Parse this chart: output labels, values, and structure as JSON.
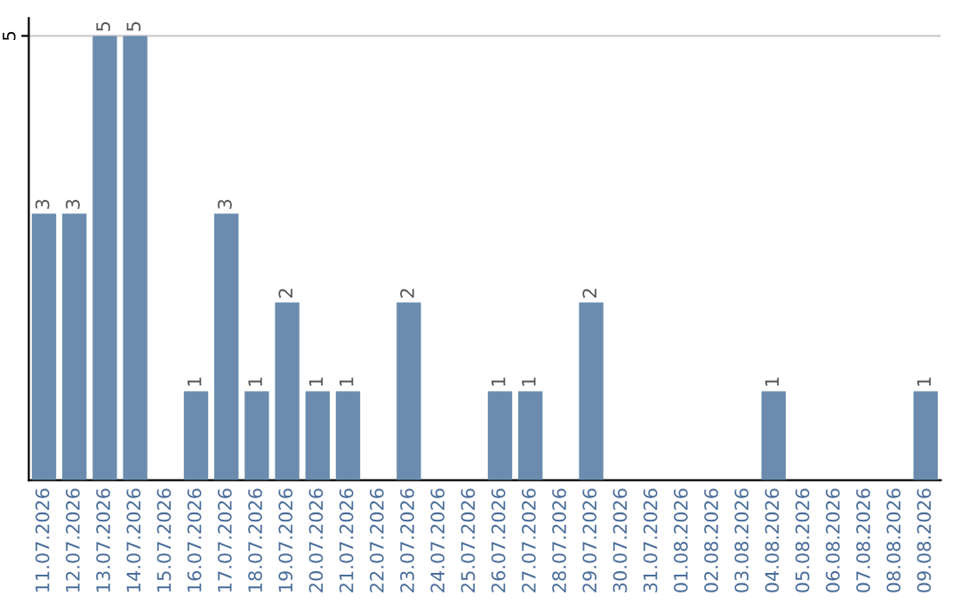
{
  "chart_data": {
    "type": "bar",
    "categories": [
      "11.07.2026",
      "12.07.2026",
      "13.07.2026",
      "14.07.2026",
      "15.07.2026",
      "16.07.2026",
      "17.07.2026",
      "18.07.2026",
      "19.07.2026",
      "20.07.2026",
      "21.07.2026",
      "22.07.2026",
      "23.07.2026",
      "24.07.2026",
      "25.07.2026",
      "26.07.2026",
      "27.07.2026",
      "28.07.2026",
      "29.07.2026",
      "30.07.2026",
      "31.07.2026",
      "01.08.2026",
      "02.08.2026",
      "03.08.2026",
      "04.08.2026",
      "05.08.2026",
      "06.08.2026",
      "07.08.2026",
      "08.08.2026",
      "09.08.2026"
    ],
    "values": [
      3,
      3,
      5,
      5,
      0,
      1,
      3,
      1,
      2,
      1,
      1,
      0,
      2,
      0,
      0,
      1,
      1,
      0,
      2,
      0,
      0,
      0,
      0,
      0,
      1,
      0,
      0,
      0,
      0,
      1
    ],
    "value_labels": [
      "3",
      "3",
      "5",
      "5",
      null,
      "1",
      "3",
      "1",
      "2",
      "1",
      "1",
      null,
      "2",
      null,
      null,
      "1",
      "1",
      null,
      "2",
      null,
      null,
      null,
      null,
      null,
      "1",
      null,
      null,
      null,
      null,
      "1"
    ],
    "color": "#6b8cae",
    "ylim": [
      0,
      5.2
    ],
    "yticks": [
      5
    ],
    "grid": "y"
  }
}
